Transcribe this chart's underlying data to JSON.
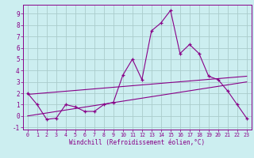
{
  "xlabel": "Windchill (Refroidissement éolien,°C)",
  "bg_color": "#cceef0",
  "grid_color": "#aacccc",
  "line_color": "#880088",
  "xlim": [
    -0.5,
    23.5
  ],
  "ylim": [
    -1.2,
    9.8
  ],
  "xticks": [
    0,
    1,
    2,
    3,
    4,
    5,
    6,
    7,
    8,
    9,
    10,
    11,
    12,
    13,
    14,
    15,
    16,
    17,
    18,
    19,
    20,
    21,
    22,
    23
  ],
  "yticks": [
    -1,
    0,
    1,
    2,
    3,
    4,
    5,
    6,
    7,
    8,
    9
  ],
  "x_data": [
    0,
    1,
    2,
    3,
    4,
    5,
    6,
    7,
    8,
    9,
    10,
    11,
    12,
    13,
    14,
    15,
    16,
    17,
    18,
    19,
    20,
    21,
    22,
    23
  ],
  "y_data": [
    2.0,
    1.0,
    -0.3,
    -0.2,
    1.0,
    0.8,
    0.4,
    0.4,
    1.0,
    1.2,
    3.6,
    5.0,
    3.2,
    7.5,
    8.2,
    9.3,
    5.5,
    6.3,
    5.5,
    3.5,
    3.2,
    2.2,
    1.0,
    -0.2
  ],
  "trend1_x": [
    0,
    23
  ],
  "trend1_y": [
    1.9,
    3.5
  ],
  "trend2_x": [
    0,
    23
  ],
  "trend2_y": [
    0.0,
    3.0
  ]
}
